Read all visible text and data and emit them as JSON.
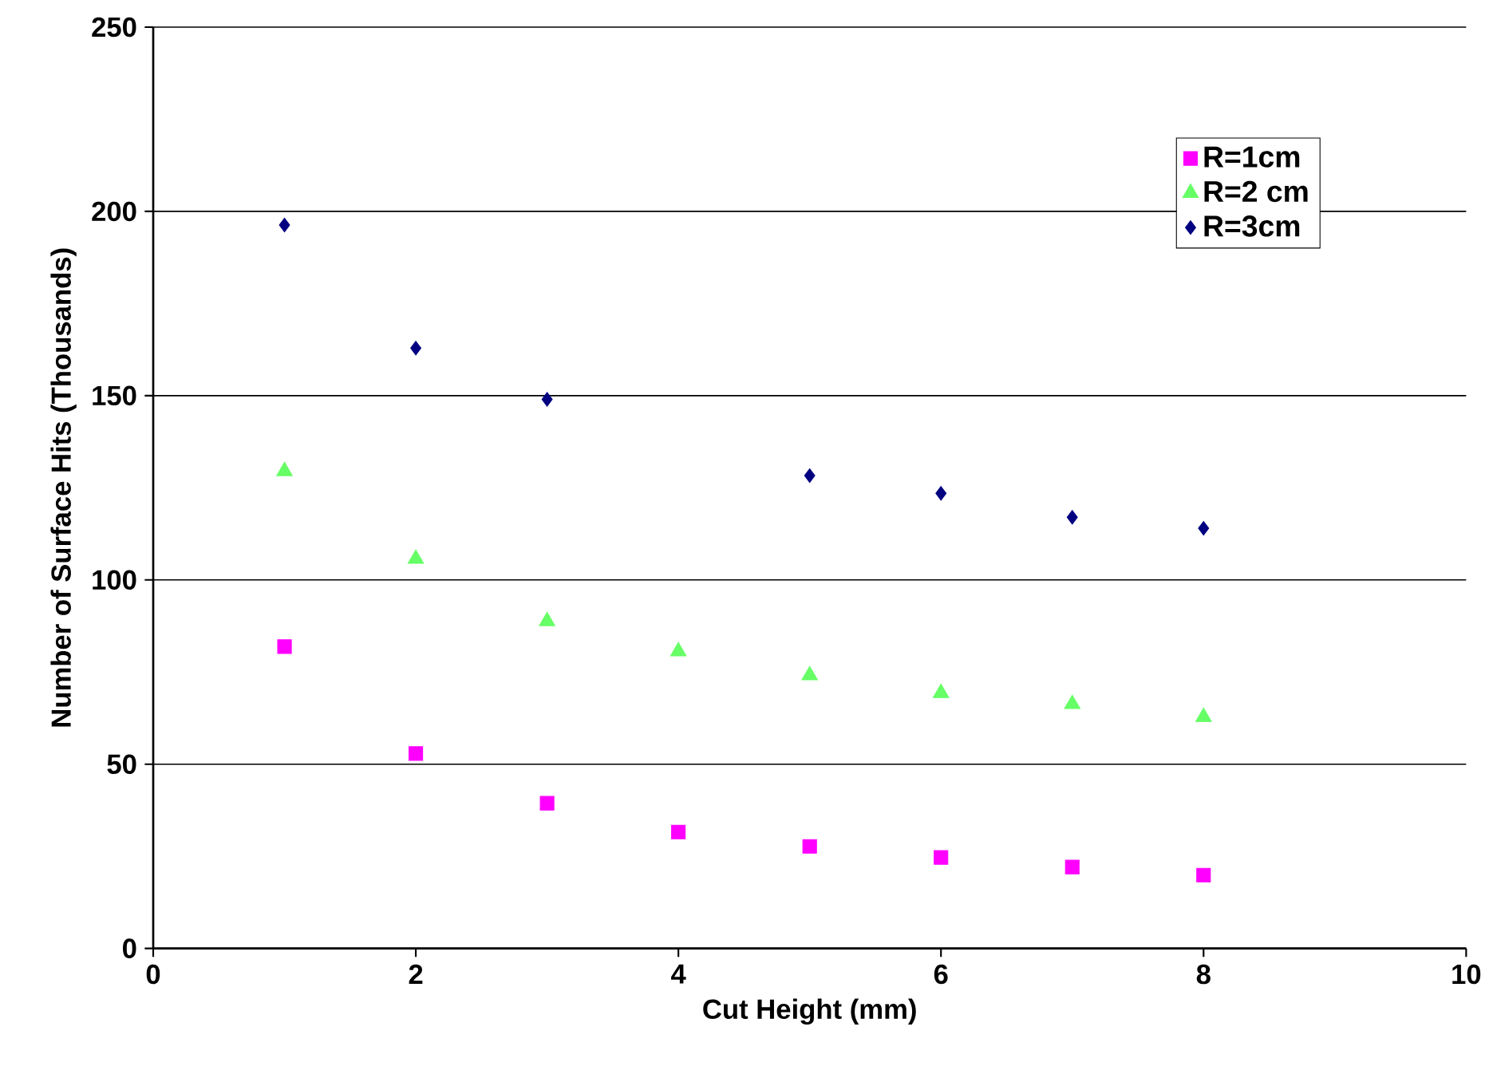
{
  "chart_data": {
    "type": "scatter",
    "xlabel": "Cut Height (mm)",
    "ylabel": "Number of Surface Hits (Thousands)",
    "x": [
      1,
      2,
      3,
      4,
      5,
      6,
      7,
      8
    ],
    "series": [
      {
        "name": "R=1cm",
        "color": "#ff00ff",
        "marker": "square",
        "values": [
          81.9,
          52.9,
          39.4,
          31.6,
          27.7,
          24.7,
          22.1,
          19.9
        ]
      },
      {
        "name": "R=2 cm",
        "color": "#66ff66",
        "marker": "triangle",
        "values": [
          129.5,
          105.7,
          88.8,
          80.6,
          74.1,
          69.3,
          66.3,
          62.8
        ]
      },
      {
        "name": "R=3cm",
        "color": "#000080",
        "marker": "diamond",
        "values": [
          196.3,
          162.9,
          149,
          null,
          128.3,
          123.5,
          117,
          114
        ]
      }
    ],
    "xlim": [
      0,
      10
    ],
    "ylim": [
      0,
      250
    ],
    "xticks": [
      0,
      2,
      4,
      6,
      8,
      10
    ],
    "yticks": [
      0,
      50,
      100,
      150,
      200,
      250
    ],
    "grid": "y",
    "legend": "top right"
  }
}
